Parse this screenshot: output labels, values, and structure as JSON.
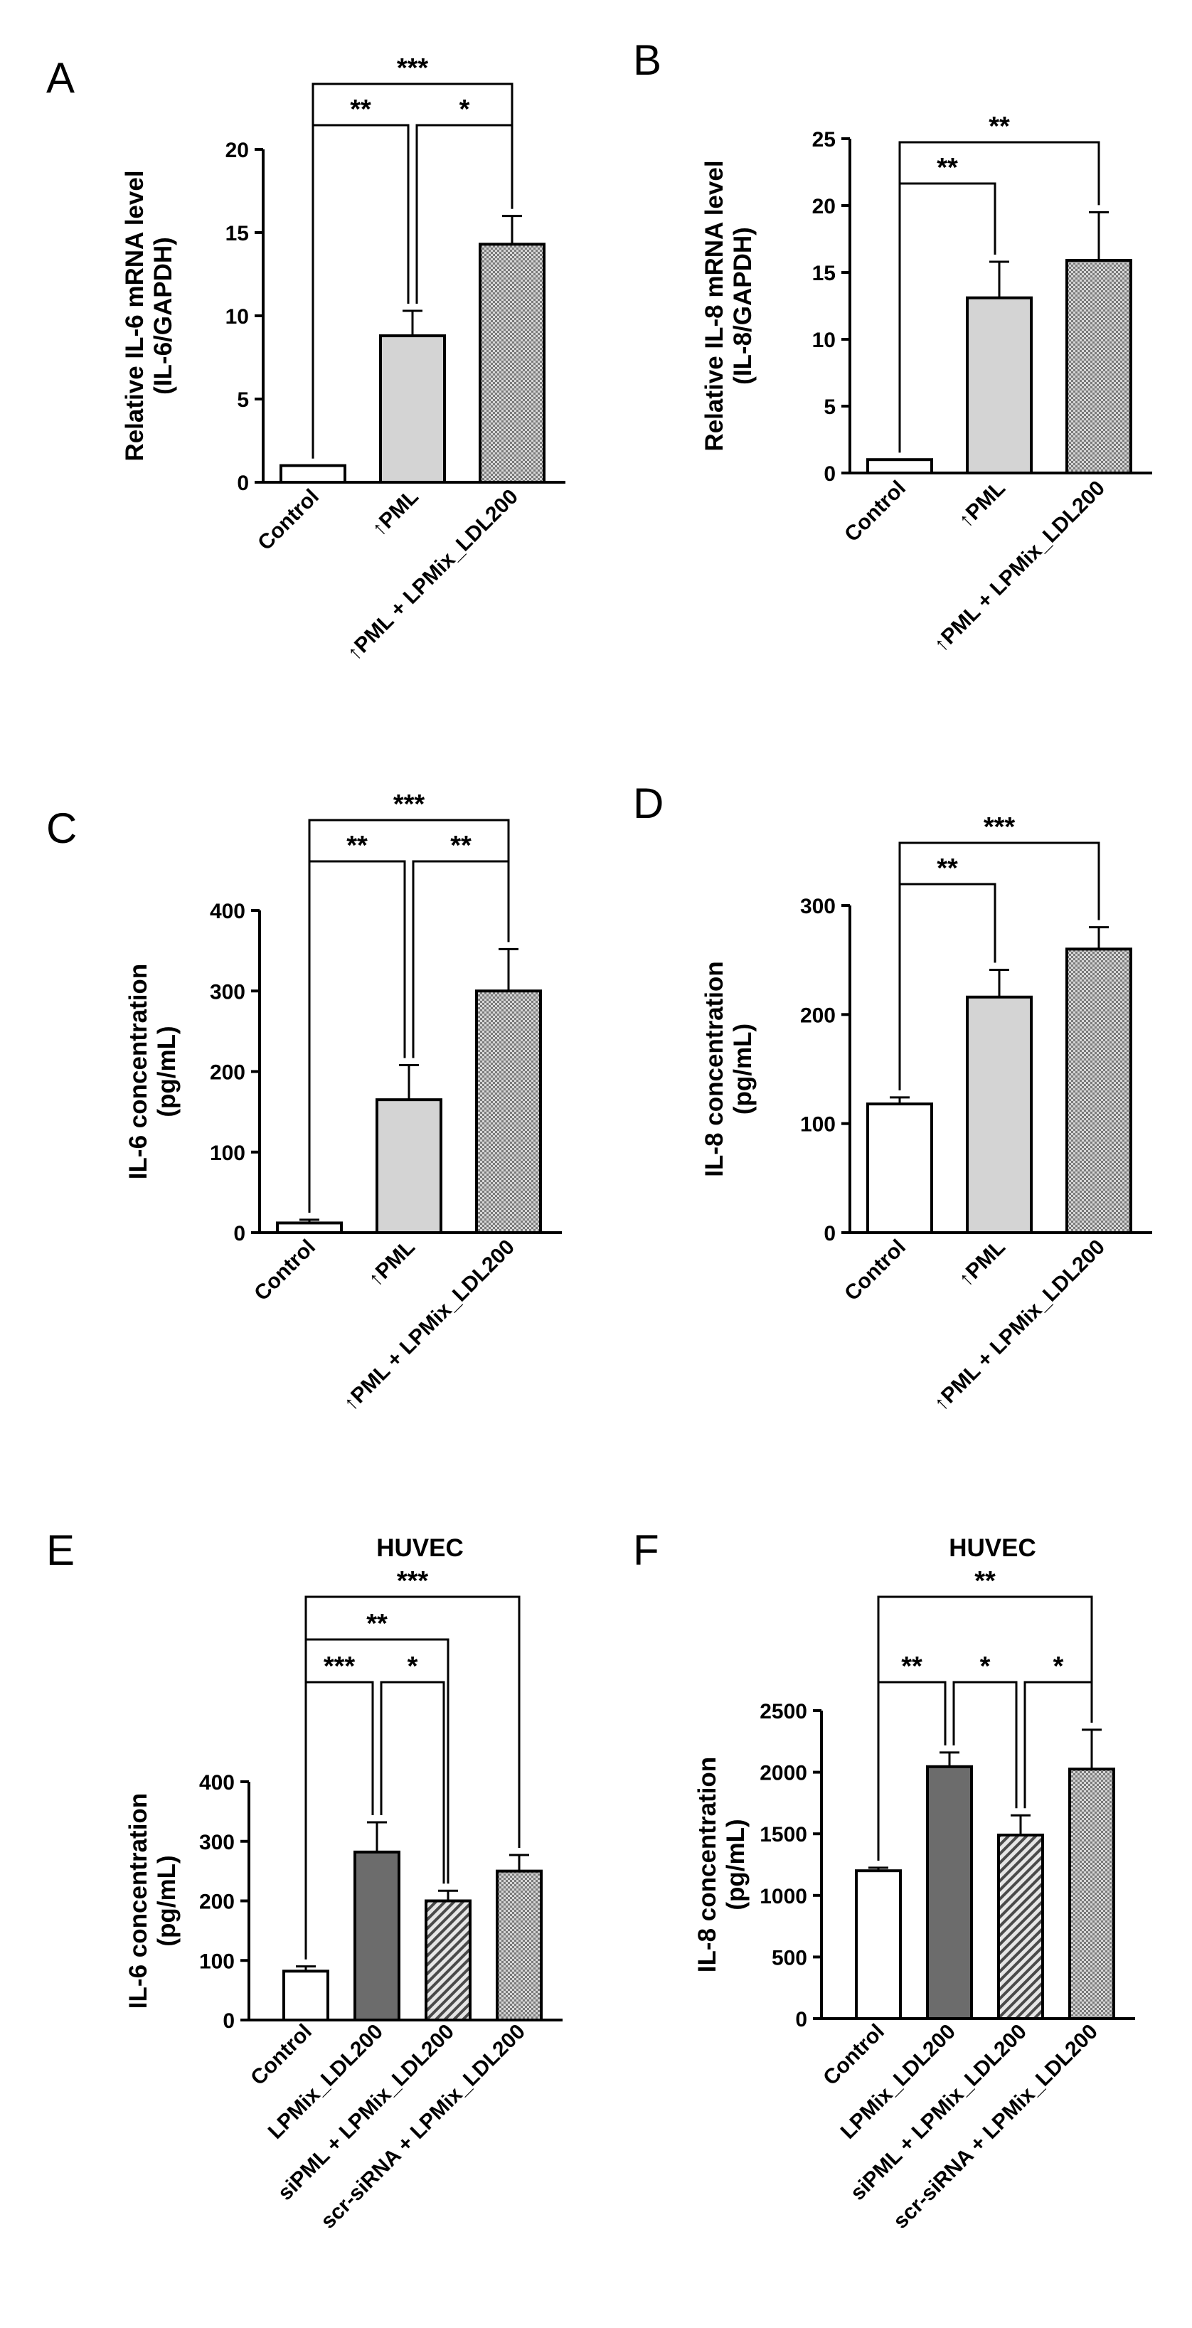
{
  "figure": {
    "panels": [
      {
        "letter": "A"
      },
      {
        "letter": "B"
      },
      {
        "letter": "C"
      },
      {
        "letter": "D"
      },
      {
        "letter": "E"
      },
      {
        "letter": "F"
      }
    ]
  },
  "chart_data": [
    {
      "panel": "A",
      "type": "bar",
      "title": "",
      "ylabel": [
        "Relative IL-6 mRNA level",
        "(IL-6/GAPDH)"
      ],
      "categories": [
        "Control",
        "PML",
        "PML + LPMix_LDL200"
      ],
      "arrow_prefix": [
        false,
        true,
        true
      ],
      "values": [
        1.0,
        8.8,
        14.3
      ],
      "errors": [
        0.0,
        1.5,
        1.7
      ],
      "fills": [
        "white",
        "lightgray",
        "checker"
      ],
      "ylim": [
        0,
        20
      ],
      "yticks": [
        0,
        5,
        10,
        15,
        20
      ],
      "significance": [
        {
          "from": 0,
          "to": 1,
          "label": "**"
        },
        {
          "from": 1,
          "to": 2,
          "label": "*"
        },
        {
          "from": 0,
          "to": 2,
          "label": "***"
        }
      ]
    },
    {
      "panel": "B",
      "type": "bar",
      "title": "",
      "ylabel": [
        "Relative IL-8 mRNA level",
        "(IL-8/GAPDH)"
      ],
      "categories": [
        "Control",
        "PML",
        "PML + LPMix_LDL200"
      ],
      "arrow_prefix": [
        false,
        true,
        true
      ],
      "values": [
        1.0,
        13.1,
        15.9
      ],
      "errors": [
        0.0,
        2.7,
        3.6
      ],
      "fills": [
        "white",
        "lightgray",
        "checker"
      ],
      "ylim": [
        0,
        25
      ],
      "yticks": [
        0,
        5,
        10,
        15,
        20,
        25
      ],
      "significance": [
        {
          "from": 0,
          "to": 1,
          "label": "**"
        },
        {
          "from": 0,
          "to": 2,
          "label": "**"
        }
      ]
    },
    {
      "panel": "C",
      "type": "bar",
      "title": "",
      "ylabel": [
        "IL-6 concentration",
        "(pg/mL)"
      ],
      "categories": [
        "Control",
        "PML",
        "PML + LPMix_LDL200"
      ],
      "arrow_prefix": [
        false,
        true,
        true
      ],
      "values": [
        12,
        165,
        300
      ],
      "errors": [
        4,
        43,
        52
      ],
      "fills": [
        "white",
        "lightgray",
        "checker"
      ],
      "ylim": [
        0,
        400
      ],
      "yticks": [
        0,
        100,
        200,
        300,
        400
      ],
      "significance": [
        {
          "from": 0,
          "to": 1,
          "label": "**"
        },
        {
          "from": 1,
          "to": 2,
          "label": "**"
        },
        {
          "from": 0,
          "to": 2,
          "label": "***"
        }
      ]
    },
    {
      "panel": "D",
      "type": "bar",
      "title": "",
      "ylabel": [
        "IL-8 concentration",
        "(pg/mL)"
      ],
      "categories": [
        "Control",
        "PML",
        "PML + LPMix_LDL200"
      ],
      "arrow_prefix": [
        false,
        true,
        true
      ],
      "values": [
        118,
        216,
        260
      ],
      "errors": [
        6,
        25,
        20
      ],
      "fills": [
        "white",
        "lightgray",
        "checker"
      ],
      "ylim": [
        0,
        300
      ],
      "yticks": [
        0,
        100,
        200,
        300
      ],
      "significance": [
        {
          "from": 0,
          "to": 1,
          "label": "**"
        },
        {
          "from": 0,
          "to": 2,
          "label": "***"
        }
      ]
    },
    {
      "panel": "E",
      "type": "bar",
      "title": "HUVEC",
      "ylabel": [
        "IL-6 concentration",
        "(pg/mL)"
      ],
      "categories": [
        "Control",
        "LPMix_LDL200",
        "siPML + LPMix_LDL200",
        "scr-siRNA + LPMix_LDL200"
      ],
      "arrow_prefix": [
        false,
        false,
        false,
        false
      ],
      "values": [
        82,
        282,
        200,
        250
      ],
      "errors": [
        8,
        50,
        17,
        27
      ],
      "fills": [
        "white",
        "darkgray",
        "hatch",
        "checker"
      ],
      "ylim": [
        0,
        400
      ],
      "yticks": [
        0,
        100,
        200,
        300,
        400
      ],
      "significance": [
        {
          "from": 0,
          "to": 1,
          "label": "***"
        },
        {
          "from": 1,
          "to": 2,
          "label": "*"
        },
        {
          "from": 0,
          "to": 2,
          "label": "**"
        },
        {
          "from": 0,
          "to": 3,
          "label": "***"
        }
      ]
    },
    {
      "panel": "F",
      "type": "bar",
      "title": "HUVEC",
      "ylabel": [
        "IL-8 concentration",
        "(pg/mL)"
      ],
      "categories": [
        "Control",
        "LPMix_LDL200",
        "siPML + LPMix_LDL200",
        "scr-siRNA + LPMix_LDL200"
      ],
      "arrow_prefix": [
        false,
        false,
        false,
        false
      ],
      "values": [
        1200,
        2045,
        1490,
        2025
      ],
      "errors": [
        25,
        115,
        160,
        320
      ],
      "fills": [
        "white",
        "darkgray",
        "hatch",
        "checker"
      ],
      "ylim": [
        0,
        2500
      ],
      "yticks": [
        0,
        500,
        1000,
        1500,
        2000,
        2500
      ],
      "significance": [
        {
          "from": 0,
          "to": 1,
          "label": "**"
        },
        {
          "from": 1,
          "to": 2,
          "label": "*"
        },
        {
          "from": 2,
          "to": 3,
          "label": "*"
        },
        {
          "from": 0,
          "to": 3,
          "label": "**"
        }
      ]
    }
  ]
}
